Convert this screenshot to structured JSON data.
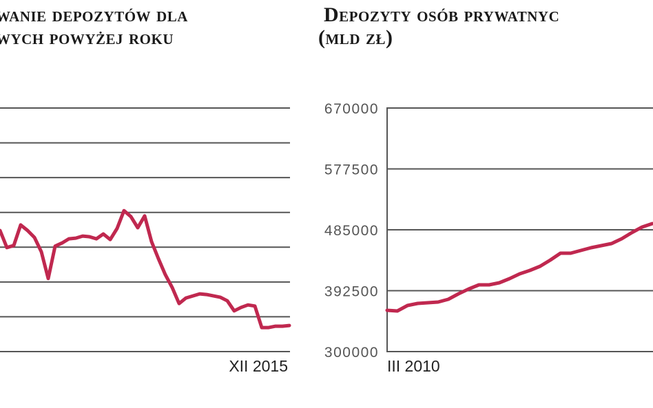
{
  "colors": {
    "line": "#c0284f",
    "grid": "#555555",
    "text": "#1a1a1a",
    "tick": "#555555"
  },
  "chart_data": [
    {
      "type": "line",
      "title_lines": [
        "wanie depozytów dla",
        "wych powyżej roku"
      ],
      "x_end_label": "XII 2015",
      "ylabel": "",
      "y_gridlines": 8,
      "ylim": [
        0,
        7
      ],
      "grid": true,
      "values": [
        3.48,
        2.99,
        3.05,
        3.64,
        3.48,
        3.28,
        2.87,
        2.1,
        3.03,
        3.12,
        3.24,
        3.26,
        3.32,
        3.3,
        3.24,
        3.38,
        3.22,
        3.54,
        4.05,
        3.88,
        3.56,
        3.9,
        3.16,
        2.67,
        2.21,
        1.84,
        1.38,
        1.54,
        1.6,
        1.66,
        1.64,
        1.6,
        1.56,
        1.46,
        1.17,
        1.27,
        1.34,
        1.31,
        0.69,
        0.69,
        0.73,
        0.73,
        0.75
      ]
    },
    {
      "type": "line",
      "title_lines": [
        "Depozyty osób prywatnyc",
        "(mld zł)"
      ],
      "x_start_label": "III 2010",
      "ylim": [
        300000,
        670000
      ],
      "yticks": [
        "300000",
        "392500",
        "485000",
        "577500",
        "670000"
      ],
      "grid": true,
      "values": [
        362700,
        361700,
        370000,
        373200,
        374200,
        375300,
        379400,
        387800,
        395100,
        401400,
        401400,
        404500,
        410800,
        418100,
        423300,
        429600,
        439000,
        449500,
        449500,
        453600,
        457800,
        461000,
        464100,
        471400,
        480800,
        489200,
        494400
      ]
    }
  ]
}
